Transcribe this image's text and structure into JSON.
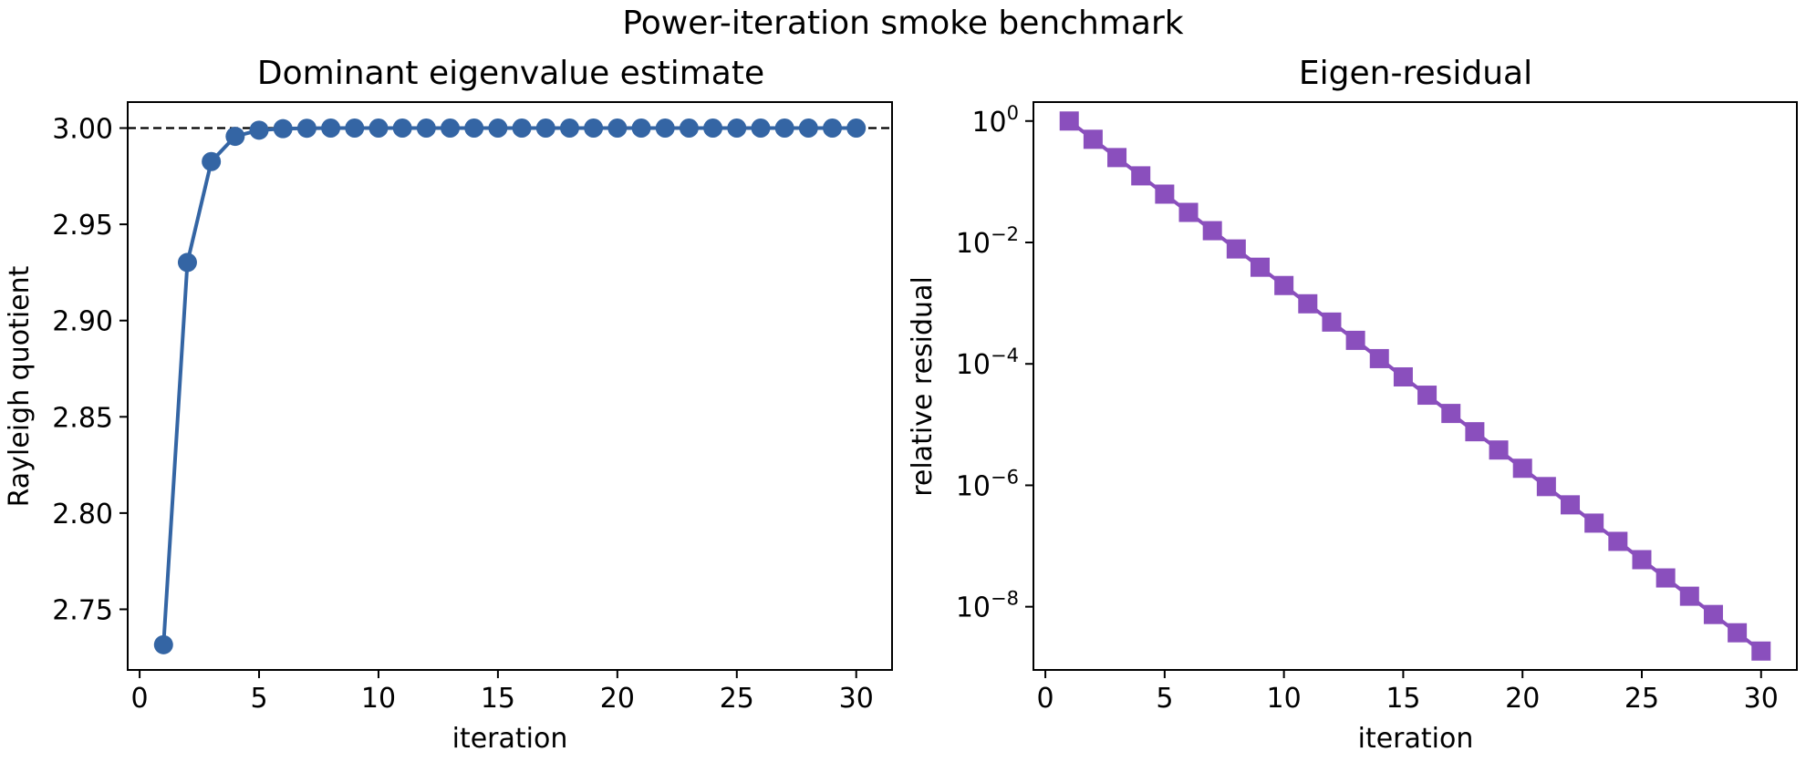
{
  "figure": {
    "title": "Power-iteration smoke benchmark"
  },
  "colors": {
    "estimate": "#3465a4",
    "residual": "#8a4fbd",
    "reference": "#000000"
  },
  "chart_data": [
    {
      "type": "line",
      "title": "Dominant eigenvalue estimate",
      "xlabel": "iteration",
      "ylabel": "Rayleigh quotient",
      "xlim": [
        -0.5,
        31.5
      ],
      "ylim": [
        2.7185,
        3.0135
      ],
      "xticks": [
        0,
        5,
        10,
        15,
        20,
        25,
        30
      ],
      "yticks": [
        2.75,
        2.8,
        2.85,
        2.9,
        2.95,
        3.0
      ],
      "ytick_labels": [
        "2.75",
        "2.80",
        "2.85",
        "2.90",
        "2.95",
        "3.00"
      ],
      "grid": false,
      "marker": "circle",
      "reference_line": {
        "y": 3.0,
        "style": "dashed"
      },
      "series": [
        {
          "x": [
            1,
            2,
            3,
            4,
            5,
            6,
            7,
            8,
            9,
            10,
            11,
            12,
            13,
            14,
            15,
            16,
            17,
            18,
            19,
            20,
            21,
            22,
            23,
            24,
            25,
            26,
            27,
            28,
            29,
            30
          ],
          "values": [
            2.7316,
            2.9302,
            2.9826,
            2.9957,
            2.9989,
            2.9997,
            2.9999,
            3.0,
            3.0,
            3.0,
            3.0,
            3.0,
            3.0,
            3.0,
            3.0,
            3.0,
            3.0,
            3.0,
            3.0,
            3.0,
            3.0,
            3.0,
            3.0,
            3.0,
            3.0,
            3.0,
            3.0,
            3.0,
            3.0,
            3.0
          ]
        }
      ]
    },
    {
      "type": "line",
      "title": "Eigen-residual",
      "xlabel": "iteration",
      "ylabel": "relative residual",
      "yscale": "log",
      "xlim": [
        -0.5,
        31.5
      ],
      "ylim": [
        9.1e-10,
        2.05
      ],
      "xticks": [
        0,
        5,
        10,
        15,
        20,
        25,
        30
      ],
      "yticks": [
        1e-08,
        1e-06,
        0.0001,
        0.01,
        1
      ],
      "ytick_labels": [
        {
          "base": "10",
          "exp": "−8"
        },
        {
          "base": "10",
          "exp": "−6"
        },
        {
          "base": "10",
          "exp": "−4"
        },
        {
          "base": "10",
          "exp": "−2"
        },
        {
          "base": "10",
          "exp": "0"
        }
      ],
      "grid": false,
      "marker": "square",
      "series": [
        {
          "x": [
            1,
            2,
            3,
            4,
            5,
            6,
            7,
            8,
            9,
            10,
            11,
            12,
            13,
            14,
            15,
            16,
            17,
            18,
            19,
            20,
            21,
            22,
            23,
            24,
            25,
            26,
            27,
            28,
            29,
            30
          ],
          "values": [
            1.0,
            0.5,
            0.25,
            0.125,
            0.0625,
            0.03125,
            0.015625,
            0.0078125,
            0.00390625,
            0.001953125,
            0.0009765625,
            0.00048828125,
            0.000244140625,
            0.0001220703125,
            6.103515625e-05,
            3.0517578125e-05,
            1.52587890625e-05,
            7.62939453125e-06,
            3.814697265625e-06,
            1.9073486328125e-06,
            9.5367431640625e-07,
            4.76837158203125e-07,
            2.384185791015625e-07,
            1.1920928955078125e-07,
            5.960464477539063e-08,
            2.9802322387695312e-08,
            1.4901161193847656e-08,
            7.450580596923828e-09,
            3.725290298461914e-09,
            1.862645149230957e-09
          ]
        }
      ]
    }
  ]
}
